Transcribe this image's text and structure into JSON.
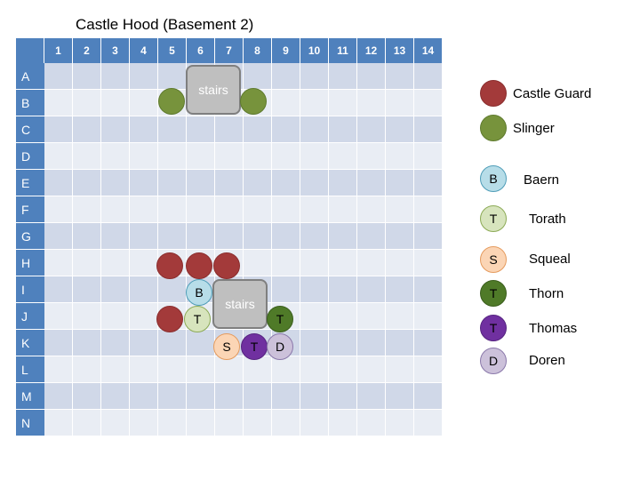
{
  "title": "Castle Hood (Basement 2)",
  "columns": [
    "1",
    "2",
    "3",
    "4",
    "5",
    "6",
    "7",
    "8",
    "9",
    "10",
    "11",
    "12",
    "13",
    "14"
  ],
  "rows": [
    "A",
    "B",
    "C",
    "D",
    "E",
    "F",
    "G",
    "H",
    "I",
    "J",
    "K",
    "L",
    "M",
    "N"
  ],
  "stairs_label": "stairs",
  "legend": {
    "castle_guard": {
      "label": "Castle Guard",
      "color": "#a33a3a"
    },
    "slinger": {
      "label": "Slinger",
      "color": "#77933c"
    },
    "baern": {
      "label": "Baern",
      "letter": "B",
      "color": "#b7dde8"
    },
    "torath": {
      "label": "Torath",
      "letter": "T",
      "color": "#d7e4bd"
    },
    "squeal": {
      "label": "Squeal",
      "letter": "S",
      "color": "#fbd5b5"
    },
    "thorn": {
      "label": "Thorn",
      "letter": "T",
      "color": "#4f7a28"
    },
    "thomas": {
      "label": "Thomas",
      "letter": "T",
      "color": "#7030a0"
    },
    "doren": {
      "label": "Doren",
      "letter": "D",
      "color": "#ccc1da"
    }
  },
  "tokens": {
    "baern": "B",
    "torath": "T",
    "squeal": "S",
    "thorn": "T",
    "thomas": "T",
    "doren": "D"
  }
}
